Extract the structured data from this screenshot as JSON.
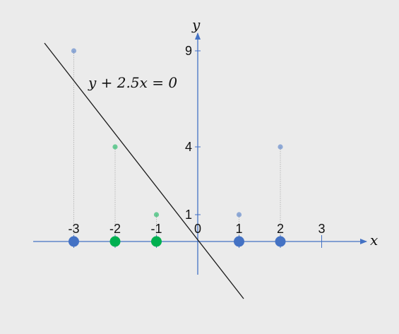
{
  "colors": {
    "background": "#ebebeb",
    "axis": "#4472c4",
    "line": "#1a1a1a",
    "blue_point": "#4472c4",
    "green_point": "#00b050",
    "drop_line": "#b8b8b8"
  },
  "diagram": {
    "x_axis_label": "x",
    "y_axis_label": "y",
    "line_label": "y + 2.5x = 0",
    "x_ticks": [
      {
        "value": -3,
        "label": "-3"
      },
      {
        "value": -2,
        "label": "-2"
      },
      {
        "value": -1,
        "label": "-1"
      },
      {
        "value": 0,
        "label": "0"
      },
      {
        "value": 1,
        "label": "1"
      },
      {
        "value": 2,
        "label": "2"
      },
      {
        "value": 3,
        "label": "3"
      }
    ],
    "y_ticks": [
      {
        "value": 1,
        "label": "1"
      },
      {
        "value": 4,
        "label": "4"
      },
      {
        "value": 9,
        "label": "9"
      }
    ],
    "points": [
      {
        "x": -3,
        "lifted_y": 9,
        "class": "blue"
      },
      {
        "x": -2,
        "lifted_y": 4,
        "class": "green"
      },
      {
        "x": -1,
        "lifted_y": 1,
        "class": "green"
      },
      {
        "x": 1,
        "lifted_y": 1,
        "class": "blue"
      },
      {
        "x": 2,
        "lifted_y": 4,
        "class": "blue"
      }
    ]
  }
}
